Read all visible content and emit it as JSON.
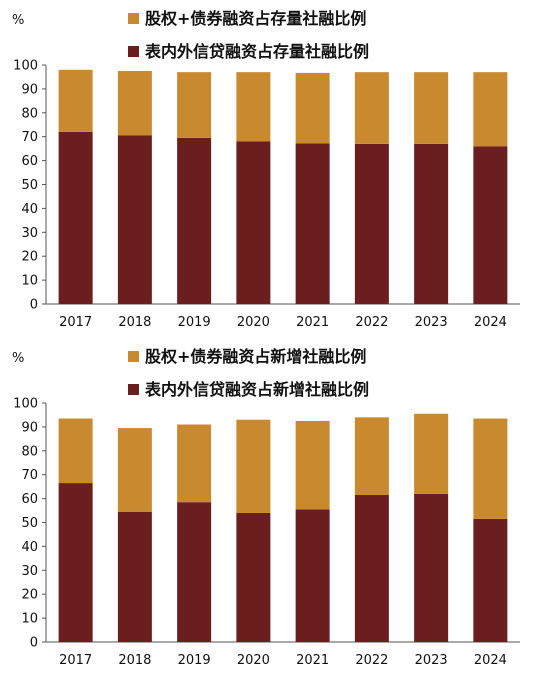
{
  "colors": {
    "equity_bond": "#C9892E",
    "loan": "#6B1E1E"
  },
  "chart_data": [
    {
      "type": "bar",
      "stacked": true,
      "unit_label": "%",
      "categories": [
        "2017",
        "2018",
        "2019",
        "2020",
        "2021",
        "2022",
        "2023",
        "2024"
      ],
      "ylim": [
        0,
        100
      ],
      "yticks": [
        0,
        10,
        20,
        30,
        40,
        50,
        60,
        70,
        80,
        90,
        100
      ],
      "legend_position": "top-right",
      "series": [
        {
          "name": "股权+债券融资占存量社融比例",
          "color_key": "equity_bond",
          "values": [
            26,
            27,
            27.5,
            29,
            29.5,
            30,
            30,
            31
          ]
        },
        {
          "name": "表内外信贷融资占存量社融比例",
          "color_key": "loan",
          "values": [
            72,
            70.5,
            69.5,
            68,
            67.2,
            67,
            67,
            66
          ]
        }
      ]
    },
    {
      "type": "bar",
      "stacked": true,
      "unit_label": "%",
      "categories": [
        "2017",
        "2018",
        "2019",
        "2020",
        "2021",
        "2022",
        "2023",
        "2024"
      ],
      "ylim": [
        0,
        100
      ],
      "yticks": [
        0,
        10,
        20,
        30,
        40,
        50,
        60,
        70,
        80,
        90,
        100
      ],
      "legend_position": "top-right",
      "series": [
        {
          "name": "股权+债券融资占新增社融比例",
          "color_key": "equity_bond",
          "values": [
            27,
            35,
            32.5,
            39,
            37,
            32.5,
            33.5,
            42
          ]
        },
        {
          "name": "表内外信贷融资占新增社融比例",
          "color_key": "loan",
          "values": [
            66.5,
            54.5,
            58.5,
            54,
            55.5,
            61.5,
            62,
            51.5
          ]
        }
      ]
    }
  ]
}
